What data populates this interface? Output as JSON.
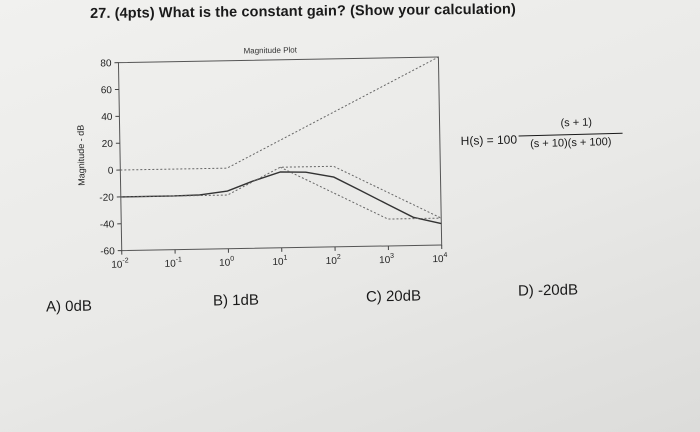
{
  "question": "27. (4pts) What is the constant gain? (Show your calculation)",
  "chart_data": {
    "type": "line",
    "title": "Magnitude Plot",
    "ylabel": "Magnitude - dB",
    "xlabel": "",
    "x_scale": "log",
    "xlim": [
      0.01,
      10000
    ],
    "ylim": [
      -60,
      80
    ],
    "yticks": [
      "80",
      "60",
      "40",
      "20",
      "0",
      "-20",
      "-40",
      "-60"
    ],
    "ytick_values": [
      80,
      60,
      40,
      20,
      0,
      -20,
      -40,
      -60
    ],
    "xticks": [
      {
        "base": "10",
        "exp": "-2",
        "value": 0.01
      },
      {
        "base": "10",
        "exp": "-1",
        "value": 0.1
      },
      {
        "base": "10",
        "exp": "0",
        "value": 1
      },
      {
        "base": "10",
        "exp": "1",
        "value": 10
      },
      {
        "base": "10",
        "exp": "2",
        "value": 100
      },
      {
        "base": "10",
        "exp": "3",
        "value": 1000
      },
      {
        "base": "10",
        "exp": "4",
        "value": 10000
      }
    ],
    "series": [
      {
        "style": "solid",
        "color": "#333333",
        "x": [
          0.01,
          0.1,
          0.3,
          1,
          3,
          10,
          30,
          100,
          300,
          1000,
          3000,
          10000
        ],
        "y": [
          -20,
          -20,
          -19.6,
          -17,
          -10,
          -3.5,
          -4,
          -8,
          -18,
          -29,
          -39,
          -44
        ]
      },
      {
        "style": "dotted",
        "color": "#666666",
        "x": [
          0.01,
          1,
          10000
        ],
        "y": [
          0,
          0,
          80
        ]
      },
      {
        "style": "dotted",
        "color": "#666666",
        "x": [
          0.01,
          1,
          10,
          100,
          10000
        ],
        "y": [
          -20,
          -20,
          0,
          0,
          -40
        ]
      },
      {
        "style": "dotted",
        "color": "#666666",
        "x": [
          10,
          1000,
          10000
        ],
        "y": [
          0,
          -40,
          -40
        ]
      }
    ]
  },
  "formula": {
    "lhs": "H(s) = 100",
    "numerator": "(s + 1)",
    "denominator": "(s + 10)(s + 100)"
  },
  "choices": [
    {
      "label": "A) 0dB"
    },
    {
      "label": "B) 1dB"
    },
    {
      "label": "C) 20dB"
    },
    {
      "label": "D) -20dB"
    }
  ]
}
